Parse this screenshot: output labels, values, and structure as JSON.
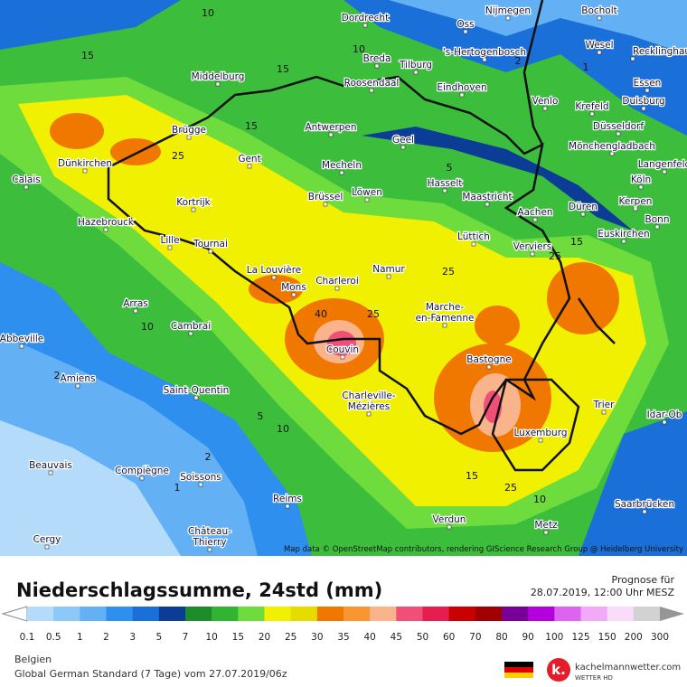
{
  "map": {
    "attribution": "Map data © OpenStreetMap contributors, rendering GIScience Research Group @ Heidelberg University",
    "cities": [
      "Dordrecht",
      "Oss",
      "Nijmegen",
      "Bocholt",
      "Breda",
      "'s-Hertogenbosch",
      "Wesel",
      "Recklinghausen",
      "Middelburg",
      "Tilburg",
      "Essen",
      "Roosendaal",
      "Eindhoven",
      "Venlo",
      "Krefeld",
      "Duisburg",
      "Brügge",
      "Antwerpen",
      "Düsseldorf",
      "Geel",
      "Mönchengladbach",
      "Dünkirchen",
      "Gent",
      "Mecheln",
      "Langenfeld",
      "Calais",
      "Hasselt",
      "Köln",
      "Kortrijk",
      "Brüssel",
      "Löwen",
      "Maastricht",
      "Düren",
      "Kerpen",
      "Hazebrouck",
      "Aachen",
      "Bonn",
      "Lüttich",
      "Euskirchen",
      "Lille",
      "Tournai",
      "Verviers",
      "La Louvière",
      "Namur",
      "Mons",
      "Charleroi",
      "Arras",
      "Marche-",
      "en-Famenne",
      "Cambrai",
      "Abbeville",
      "Couvin",
      "Bastogne",
      "Amiens",
      "Saint-Quentin",
      "Charleville-",
      "Mézières",
      "Trier",
      "Idar-Ob",
      "Luxemburg",
      "Beauvais",
      "Compiègne",
      "Soissons",
      "Reims",
      "Saarbrücken",
      "Verdun",
      "Château-",
      "Thierry",
      "Cergy",
      "Metz"
    ],
    "contour_labels": [
      10,
      15,
      15,
      10,
      15,
      25,
      5,
      2,
      1,
      25,
      15,
      25,
      40,
      25,
      10,
      2,
      5,
      10,
      2,
      15,
      25,
      10,
      1
    ]
  },
  "legend": {
    "title": "Niederschlagssumme, 24std (mm)",
    "forecast_label": "Prognose für",
    "forecast_time": "28.07.2019, 12:00 Uhr MESZ",
    "scale": [
      0.1,
      0.5,
      1,
      2,
      3,
      5,
      7,
      10,
      15,
      20,
      25,
      30,
      35,
      40,
      45,
      50,
      60,
      70,
      80,
      90,
      100,
      125,
      150,
      200,
      300
    ],
    "colors": [
      "#b4dcfa",
      "#8cc8f8",
      "#64b0f5",
      "#2f8fef",
      "#1a6fd8",
      "#0c3d96",
      "#1e8c28",
      "#32b432",
      "#6edc3c",
      "#f0f000",
      "#e6dc00",
      "#f07800",
      "#fa9632",
      "#fab48c",
      "#f05078",
      "#e61e50",
      "#c80000",
      "#a00000",
      "#780096",
      "#b400dc",
      "#dc64f0",
      "#f0aaf8",
      "#f8dcfa",
      "#d2d2d2"
    ]
  },
  "footer": {
    "region": "Belgien",
    "model": "Global German Standard (7 Tage) vom 27.07.2019/06z",
    "brand": "kachelmannwetter.com",
    "brand_sub": "WETTER HD"
  }
}
